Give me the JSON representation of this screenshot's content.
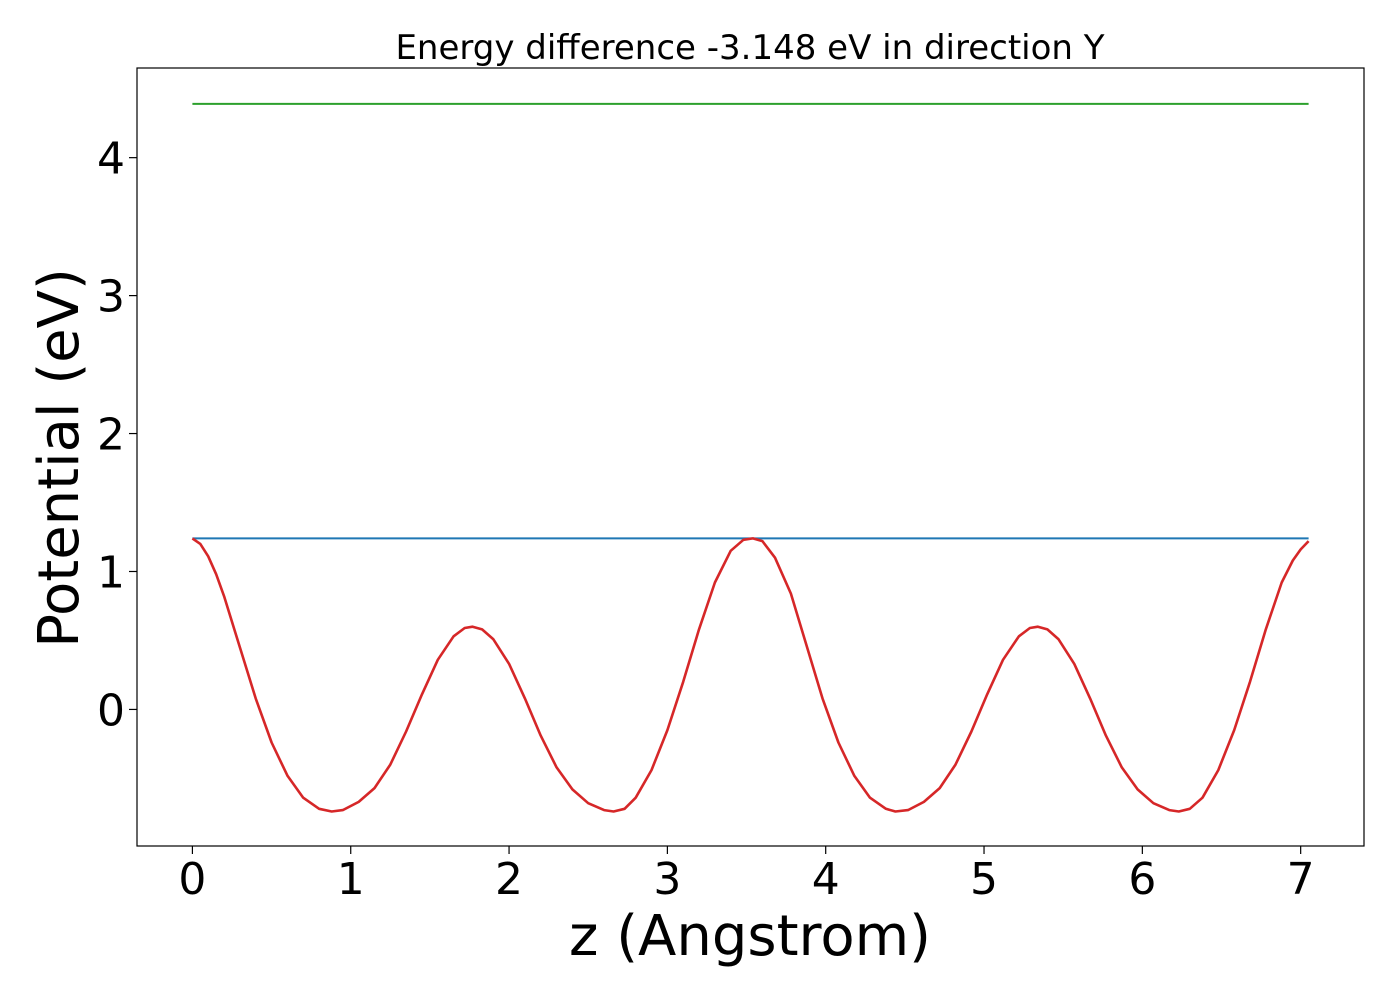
{
  "chart_data": {
    "type": "line",
    "title": "Energy difference -3.148 eV in direction Y",
    "xlabel": "z (Angstrom)",
    "ylabel": "Potential (eV)",
    "xlim": [
      -0.35,
      7.4
    ],
    "ylim": [
      -0.99,
      4.65
    ],
    "xticks": [
      0,
      1,
      2,
      3,
      4,
      5,
      6,
      7
    ],
    "xtick_labels": [
      "0",
      "1",
      "2",
      "3",
      "4",
      "5",
      "6",
      "7"
    ],
    "yticks": [
      0,
      1,
      2,
      3,
      4
    ],
    "ytick_labels": [
      "0",
      "1",
      "2",
      "3",
      "4"
    ],
    "grid": false,
    "legend": "none",
    "series": [
      {
        "color": "#1f77b4",
        "x": [
          0.0,
          7.05
        ],
        "y": [
          1.24,
          1.24
        ]
      },
      {
        "color": "#2ca02c",
        "x": [
          0.0,
          7.05
        ],
        "y": [
          4.39,
          4.39
        ]
      },
      {
        "color": "#d62728",
        "x": [
          0.0,
          0.05,
          0.1,
          0.15,
          0.2,
          0.3,
          0.4,
          0.5,
          0.6,
          0.7,
          0.8,
          0.88,
          0.95,
          1.05,
          1.15,
          1.25,
          1.35,
          1.45,
          1.55,
          1.65,
          1.72,
          1.77,
          1.83,
          1.9,
          2.0,
          2.1,
          2.2,
          2.3,
          2.4,
          2.5,
          2.6,
          2.66,
          2.73,
          2.8,
          2.9,
          3.0,
          3.1,
          3.2,
          3.3,
          3.4,
          3.48,
          3.54,
          3.6,
          3.68,
          3.78,
          3.88,
          3.98,
          4.08,
          4.18,
          4.28,
          4.38,
          4.44,
          4.52,
          4.62,
          4.72,
          4.82,
          4.92,
          5.02,
          5.12,
          5.22,
          5.29,
          5.34,
          5.4,
          5.47,
          5.57,
          5.67,
          5.77,
          5.87,
          5.97,
          6.07,
          6.17,
          6.23,
          6.3,
          6.38,
          6.48,
          6.58,
          6.68,
          6.78,
          6.88,
          6.95,
          7.0,
          7.05
        ],
        "y": [
          1.24,
          1.2,
          1.11,
          0.98,
          0.82,
          0.45,
          0.08,
          -0.24,
          -0.48,
          -0.64,
          -0.72,
          -0.74,
          -0.73,
          -0.67,
          -0.57,
          -0.4,
          -0.16,
          0.11,
          0.36,
          0.53,
          0.59,
          0.6,
          0.58,
          0.51,
          0.33,
          0.08,
          -0.19,
          -0.42,
          -0.58,
          -0.68,
          -0.73,
          -0.74,
          -0.72,
          -0.64,
          -0.44,
          -0.15,
          0.2,
          0.58,
          0.92,
          1.15,
          1.23,
          1.24,
          1.22,
          1.1,
          0.84,
          0.46,
          0.08,
          -0.24,
          -0.48,
          -0.64,
          -0.72,
          -0.74,
          -0.73,
          -0.67,
          -0.57,
          -0.4,
          -0.16,
          0.11,
          0.36,
          0.53,
          0.59,
          0.6,
          0.58,
          0.51,
          0.33,
          0.08,
          -0.19,
          -0.42,
          -0.58,
          -0.68,
          -0.73,
          -0.74,
          -0.72,
          -0.64,
          -0.44,
          -0.15,
          0.2,
          0.58,
          0.92,
          1.08,
          1.16,
          1.22
        ]
      }
    ]
  }
}
